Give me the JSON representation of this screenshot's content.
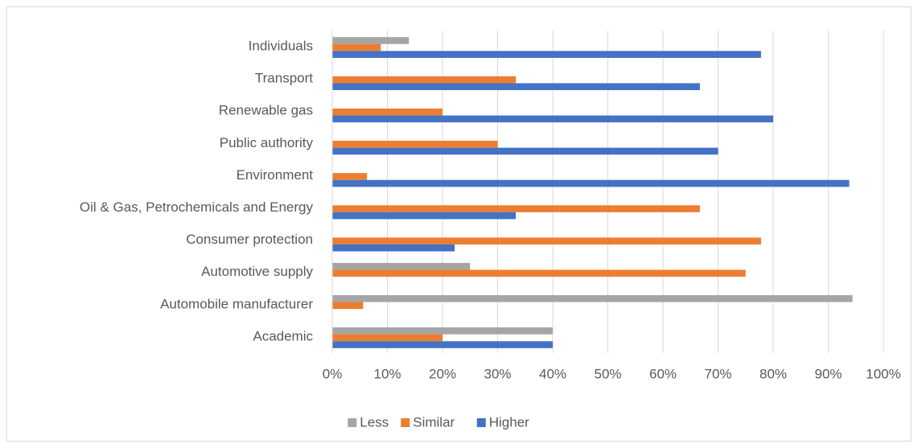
{
  "chart_data": {
    "type": "hbar",
    "categories": [
      "Individuals",
      "Transport",
      "Renewable gas",
      "Public authority",
      "Environment",
      "Oil & Gas, Petrochemicals and Energy",
      "Consumer protection",
      "Automotive supply",
      "Automobile manufacturer",
      "Academic"
    ],
    "series": [
      {
        "name": "Less",
        "color": "#a5a5a5",
        "values": [
          13.9,
          0,
          0,
          0,
          0,
          0,
          0,
          25,
          94.4,
          40
        ]
      },
      {
        "name": "Similar",
        "color": "#ed7d31",
        "values": [
          8.8,
          33.3,
          20,
          30,
          6.3,
          66.7,
          77.8,
          75,
          5.6,
          20
        ]
      },
      {
        "name": "Higher",
        "color": "#4472c4",
        "values": [
          77.8,
          66.7,
          80,
          70,
          93.8,
          33.3,
          22.2,
          0,
          0,
          40
        ]
      }
    ],
    "xlim": [
      0,
      100
    ],
    "xticks": [
      {
        "value": 0,
        "label": "0%"
      },
      {
        "value": 10,
        "label": "10%"
      },
      {
        "value": 20,
        "label": "20%"
      },
      {
        "value": 30,
        "label": "30%"
      },
      {
        "value": 40,
        "label": "40%"
      },
      {
        "value": 50,
        "label": "50%"
      },
      {
        "value": 60,
        "label": "60%"
      },
      {
        "value": 70,
        "label": "70%"
      },
      {
        "value": 80,
        "label": "80%"
      },
      {
        "value": 90,
        "label": "90%"
      },
      {
        "value": 100,
        "label": "100%"
      }
    ],
    "grid": true,
    "legend": "bottom"
  }
}
